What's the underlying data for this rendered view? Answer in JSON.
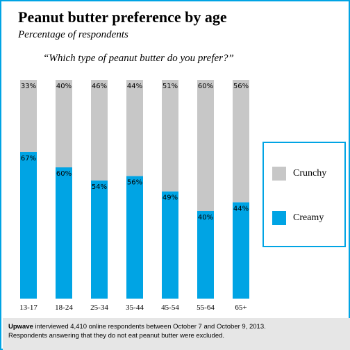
{
  "header": {
    "title": "Peanut butter preference by age",
    "subtitle": "Percentage of respondents",
    "question": "“Which type of peanut butter do you prefer?”"
  },
  "colors": {
    "crunchy": "#c7c7c7",
    "creamy": "#00a4e4",
    "frame": "#00a4e4",
    "footer_bg": "#e6e6e6"
  },
  "chart_data": {
    "type": "bar",
    "stacked": true,
    "categories": [
      "13-17",
      "18-24",
      "25-34",
      "35-44",
      "45-54",
      "55-64",
      "65+"
    ],
    "series": [
      {
        "name": "Creamy",
        "values": [
          67,
          60,
          54,
          56,
          49,
          40,
          44
        ]
      },
      {
        "name": "Crunchy",
        "values": [
          33,
          40,
          46,
          44,
          51,
          60,
          56
        ]
      }
    ],
    "ylim": [
      0,
      100
    ],
    "grid": false,
    "legend_position": "right",
    "value_format": "percent"
  },
  "legend": {
    "items": [
      {
        "label": "Crunchy",
        "color": "#c7c7c7"
      },
      {
        "label": "Creamy",
        "color": "#00a4e4"
      }
    ]
  },
  "footer": {
    "brand": "Upwave",
    "line1_rest": " interviewed 4,410 online respondents between October 7 and October 9, 2013.",
    "line2": "Respondents answering that they do not eat peanut butter were excluded."
  }
}
